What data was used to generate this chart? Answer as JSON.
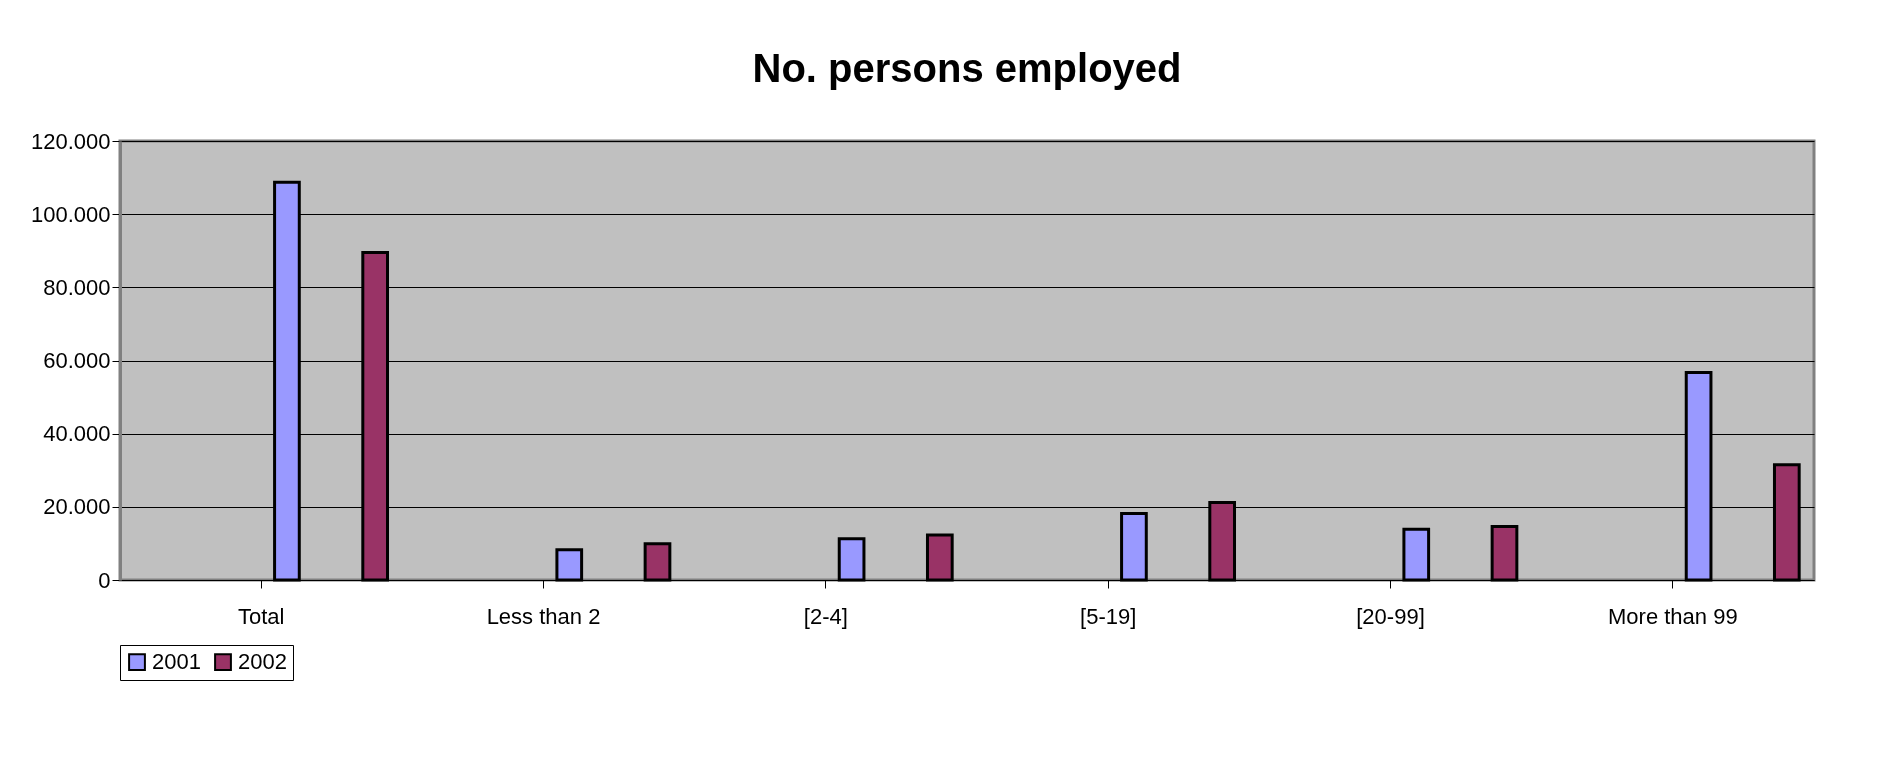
{
  "chart_data": {
    "type": "bar",
    "title": "No. persons employed",
    "categories": [
      "Total",
      "Less than 2",
      "[2-4]",
      "[5-19]",
      "[20-99]",
      "More than 99"
    ],
    "series": [
      {
        "name": "2001",
        "color": "#9999ff",
        "values": [
          108700,
          8300,
          11300,
          18200,
          13900,
          56700
        ]
      },
      {
        "name": "2002",
        "color": "#993366",
        "values": [
          89500,
          9900,
          12300,
          21200,
          14600,
          31500
        ]
      }
    ],
    "ylim": [
      0,
      120000
    ],
    "yticks": [
      0,
      {
        "value": 20000,
        "label": "20.000"
      },
      {
        "value": 40000,
        "label": "40.000"
      },
      {
        "value": 60000,
        "label": "60.000"
      },
      {
        "value": 80000,
        "label": "80.000"
      },
      {
        "value": 100000,
        "label": "100.000"
      },
      {
        "value": 120000,
        "label": "120.000"
      }
    ],
    "grid": "y",
    "legend": "bottom"
  }
}
